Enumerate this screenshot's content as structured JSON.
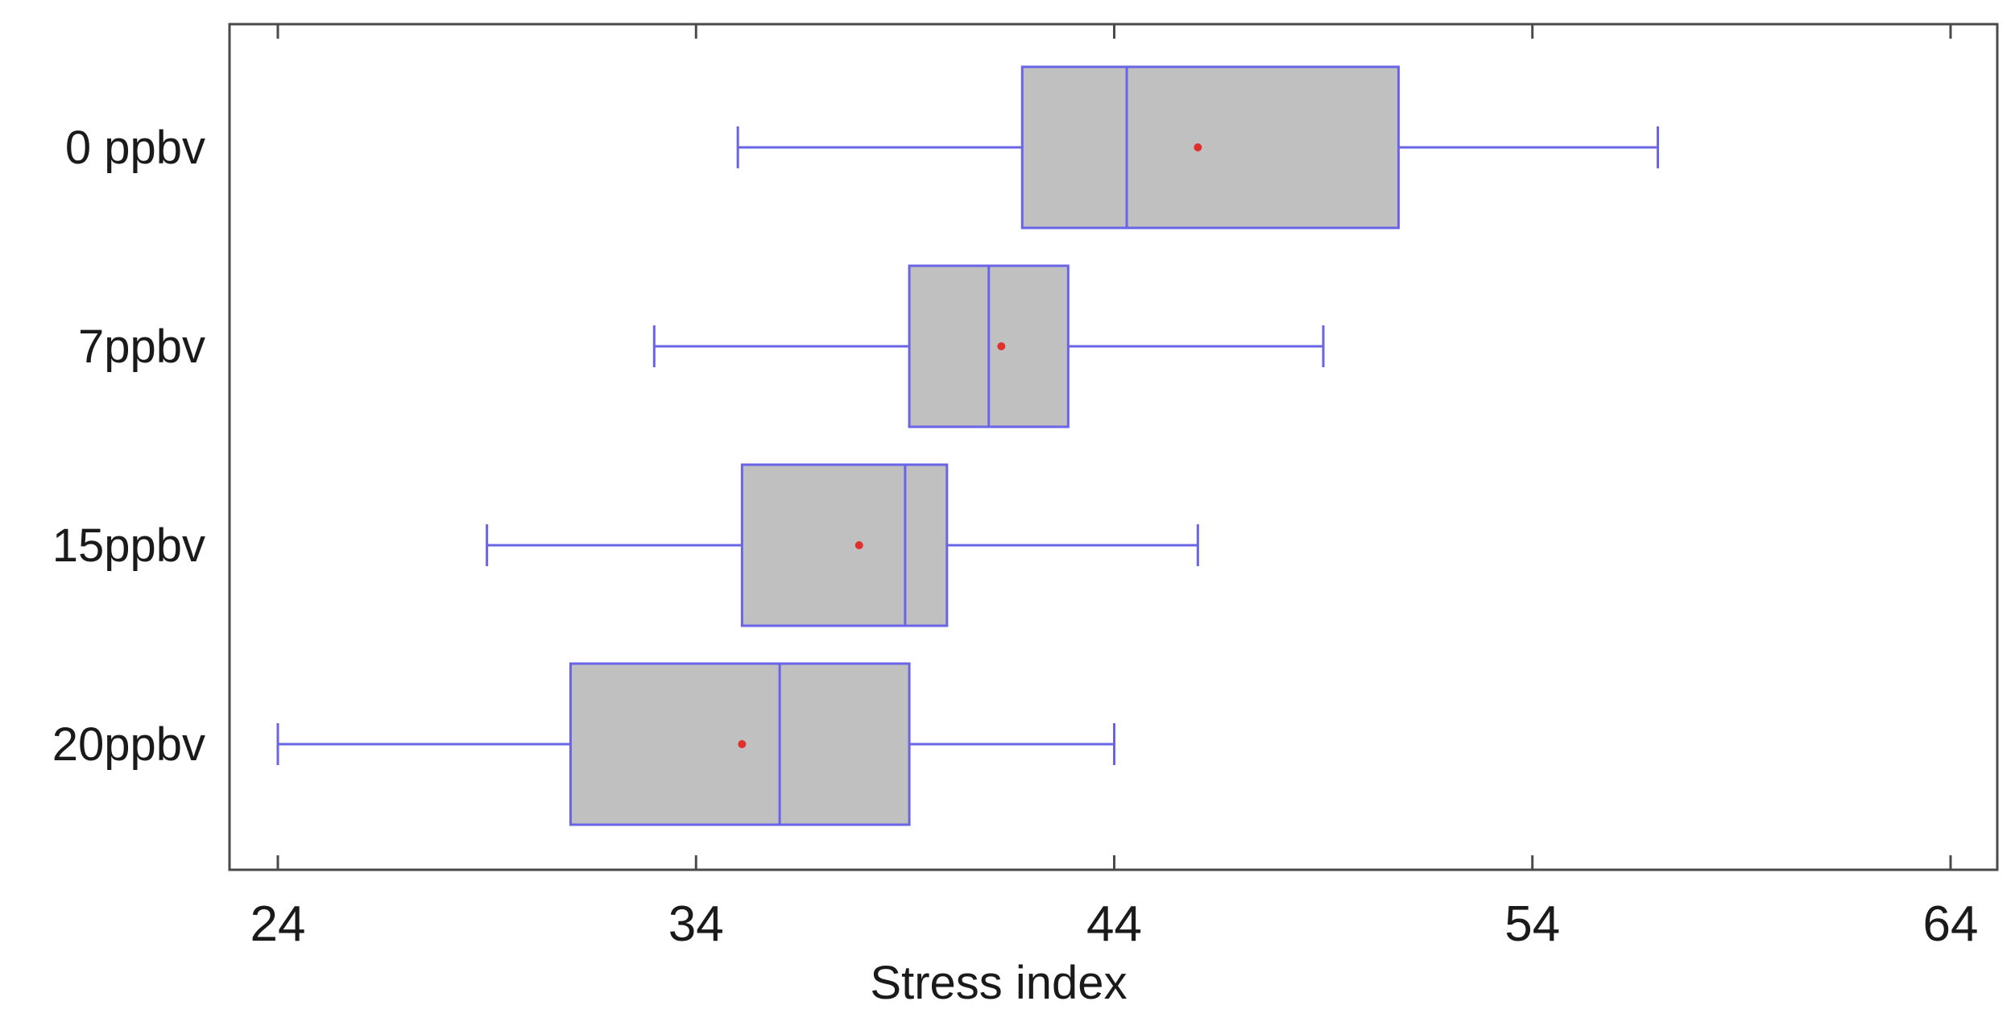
{
  "chart_data": {
    "type": "boxplot",
    "orientation": "horizontal",
    "title": "",
    "xlabel": "Stress index",
    "ylabel": "",
    "xlim": [
      22.8,
      65
    ],
    "xticks": [
      24,
      34,
      44,
      54,
      64
    ],
    "minor_tick_step": 2,
    "categories": [
      "0 ppbv",
      "7ppbv",
      "15ppbv",
      "20ppbv"
    ],
    "series": [
      {
        "name": "0 ppbv",
        "whisker_low": 35.0,
        "q1": 41.8,
        "median": 44.3,
        "q3": 50.8,
        "whisker_high": 57.0,
        "mean": 46.0
      },
      {
        "name": "7ppbv",
        "whisker_low": 33.0,
        "q1": 39.1,
        "median": 41.0,
        "q3": 42.9,
        "whisker_high": 49.0,
        "mean": 41.3
      },
      {
        "name": "15ppbv",
        "whisker_low": 29.0,
        "q1": 35.1,
        "median": 39.0,
        "q3": 40.0,
        "whisker_high": 46.0,
        "mean": 37.9
      },
      {
        "name": "20ppbv",
        "whisker_low": 24.0,
        "q1": 31.0,
        "median": 36.0,
        "q3": 39.1,
        "whisker_high": 44.0,
        "mean": 35.1
      }
    ],
    "colors": {
      "box_fill": "#c0c0c0",
      "box_stroke": "#6a64e6",
      "mean_marker": "#e0302c",
      "frame": "#4a4a4a"
    }
  }
}
